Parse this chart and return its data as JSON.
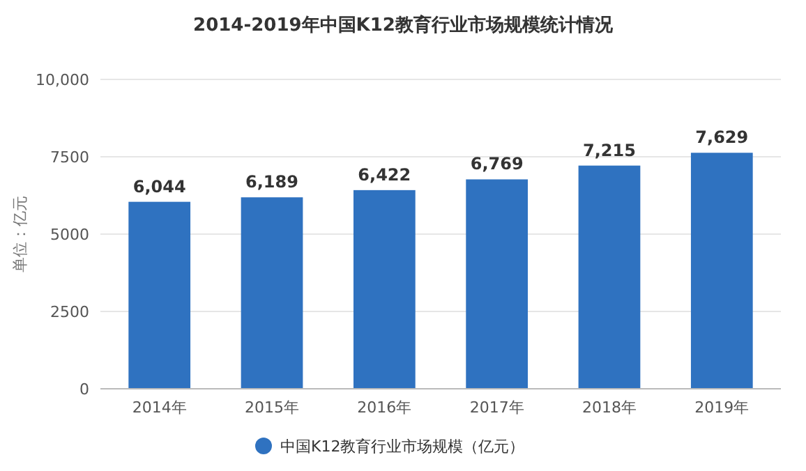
{
  "chart_data": {
    "type": "bar",
    "title": "2014-2019年中国K12教育行业市场规模统计情况",
    "ylabel": "单位：亿元",
    "categories": [
      "2014年",
      "2015年",
      "2016年",
      "2017年",
      "2018年",
      "2019年"
    ],
    "series": [
      {
        "name": "中国K12教育行业市场规模（亿元）",
        "color": "#2f72c0",
        "values": [
          6044,
          6189,
          6422,
          6769,
          7215,
          7629
        ],
        "value_labels": [
          "6,044",
          "6,189",
          "6,422",
          "6,769",
          "7,215",
          "7,629"
        ]
      }
    ],
    "ylim": [
      0,
      10000
    ],
    "yticks": [
      0,
      2500,
      5000,
      7500,
      {
        "value": 10000,
        "label": "10,000"
      }
    ],
    "grid": "y",
    "legend": "bottom"
  }
}
